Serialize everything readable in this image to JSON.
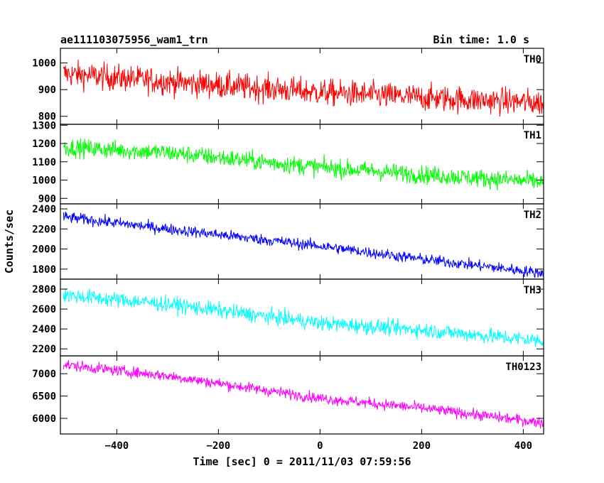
{
  "header": {
    "title": "ae111103075956_wam1_trn",
    "bin_time": "Bin time: 1.0 s"
  },
  "chart_data": {
    "type": "line",
    "xlabel": "Time [sec] 0 = 2011/11/03 07:59:56",
    "ylabel": "Counts/sec",
    "x_range": [
      -511,
      440
    ],
    "x_ticks": [
      -400,
      -200,
      0,
      200,
      400
    ],
    "x_tick_labels": [
      "−400",
      "−200",
      "0",
      "200",
      "400"
    ],
    "x_step": 1.0,
    "grid": false,
    "panels": [
      {
        "name": "TH0",
        "color": "#ff0000",
        "ylim": [
          770,
          1055
        ],
        "y_ticks": [
          800,
          900,
          1000
        ],
        "trend": [
          [
            -505,
            960
          ],
          [
            -300,
            930
          ],
          [
            0,
            890
          ],
          [
            200,
            870
          ],
          [
            440,
            850
          ]
        ],
        "noise": 45
      },
      {
        "name": "TH1",
        "color": "#00ff00",
        "ylim": [
          870,
          1305
        ],
        "y_ticks": [
          900,
          1000,
          1100,
          1200,
          1300
        ],
        "trend": [
          [
            -505,
            1180
          ],
          [
            -300,
            1150
          ],
          [
            0,
            1070
          ],
          [
            200,
            1030
          ],
          [
            440,
            990
          ]
        ],
        "noise": 45
      },
      {
        "name": "TH2",
        "color": "#0000ff",
        "ylim": [
          1700,
          2450
        ],
        "y_ticks": [
          1800,
          2000,
          2200,
          2400
        ],
        "trend": [
          [
            -505,
            2320
          ],
          [
            -300,
            2200
          ],
          [
            0,
            2030
          ],
          [
            200,
            1900
          ],
          [
            440,
            1760
          ]
        ],
        "noise": 50
      },
      {
        "name": "TH3",
        "color": "#00ffff",
        "ylim": [
          2130,
          2900
        ],
        "y_ticks": [
          2200,
          2400,
          2600,
          2800
        ],
        "trend": [
          [
            -505,
            2740
          ],
          [
            -300,
            2650
          ],
          [
            0,
            2460
          ],
          [
            200,
            2390
          ],
          [
            440,
            2280
          ]
        ],
        "noise": 70
      },
      {
        "name": "TH0123",
        "color": "#ff00ff",
        "ylim": [
          5650,
          7400
        ],
        "y_ticks": [
          6000,
          6500,
          7000
        ],
        "trend": [
          [
            -505,
            7200
          ],
          [
            -300,
            6950
          ],
          [
            0,
            6450
          ],
          [
            200,
            6230
          ],
          [
            440,
            5900
          ]
        ],
        "noise": 110
      }
    ]
  }
}
